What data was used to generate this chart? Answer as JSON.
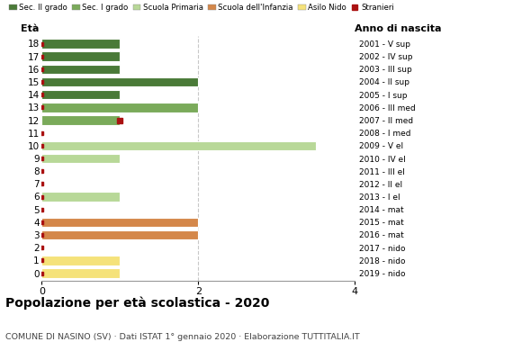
{
  "ages": [
    0,
    1,
    2,
    3,
    4,
    5,
    6,
    7,
    8,
    9,
    10,
    11,
    12,
    13,
    14,
    15,
    16,
    17,
    18
  ],
  "right_labels": [
    "2019 - nido",
    "2018 - nido",
    "2017 - nido",
    "2016 - mat",
    "2015 - mat",
    "2014 - mat",
    "2013 - I el",
    "2012 - II el",
    "2011 - III el",
    "2010 - IV el",
    "2009 - V el",
    "2008 - I med",
    "2007 - II med",
    "2006 - III med",
    "2005 - I sup",
    "2004 - II sup",
    "2003 - III sup",
    "2002 - IV sup",
    "2001 - V sup"
  ],
  "bar_values": [
    1,
    1,
    0,
    2,
    2,
    0,
    1,
    0,
    0,
    1,
    3.5,
    0,
    1,
    2,
    1,
    2,
    1,
    1,
    1
  ],
  "stranieri_marker_ages": [
    0,
    1,
    2,
    3,
    4,
    5,
    6,
    7,
    8,
    9,
    10,
    11,
    12,
    13,
    14,
    15,
    16,
    17,
    18
  ],
  "stranieri_at_bar_end": [
    12
  ],
  "xlim": [
    0,
    4
  ],
  "xticks": [
    0,
    2,
    4
  ],
  "title": "Popolazione per età scolastica - 2020",
  "subtitle": "COMUNE DI NASINO (SV) · Dati ISTAT 1° gennaio 2020 · Elaborazione TUTTITALIA.IT",
  "ylabel_left": "Età",
  "ylabel_right": "Anno di nascita",
  "legend_items": [
    {
      "label": "Sec. II grado",
      "color": "#4a7a38"
    },
    {
      "label": "Sec. I grado",
      "color": "#7aaa5a"
    },
    {
      "label": "Scuola Primaria",
      "color": "#b8d898"
    },
    {
      "label": "Scuola dell'Infanzia",
      "color": "#d4874a"
    },
    {
      "label": "Asilo Nido",
      "color": "#f5e27a"
    },
    {
      "label": "Stranieri",
      "color": "#aa1111"
    }
  ],
  "bar_height": 0.75,
  "dpi": 100,
  "figsize": [
    5.8,
    4.0
  ],
  "sec2_color": "#4a7a38",
  "sec1_color": "#7aaa5a",
  "primaria_color": "#b8d898",
  "infanzia_color": "#d4874a",
  "nido_color": "#f5e27a",
  "stranieri_color": "#aa1111",
  "bg_color": "#ffffff",
  "grid_color": "#c8c8c8",
  "axis_color": "#999999"
}
